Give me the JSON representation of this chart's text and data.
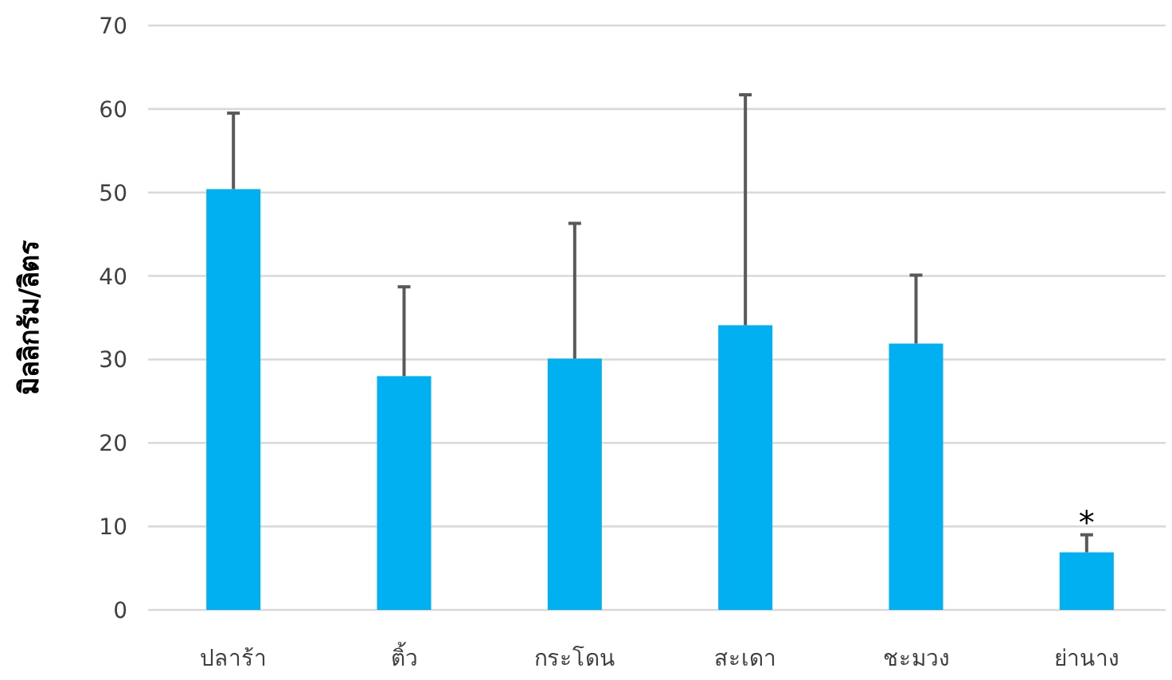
{
  "chart_data": {
    "type": "bar",
    "ylabel": "มิลลิกรัม/ลิตร",
    "categories": [
      "ปลาร้า",
      "ติ้ว",
      "กระโดน",
      "สะเดา",
      "ชะมวง",
      "ย่านาง"
    ],
    "values": [
      50.4,
      28.0,
      30.1,
      34.1,
      31.9,
      6.9
    ],
    "errors": [
      [
        50.4,
        59.5
      ],
      [
        28.0,
        38.7
      ],
      [
        30.1,
        46.3
      ],
      [
        34.1,
        61.7
      ],
      [
        31.9,
        40.1
      ],
      [
        6.9,
        9.0
      ]
    ],
    "color": "#00b0f0",
    "ylim": [
      0,
      70
    ],
    "yticks": [
      0,
      10,
      20,
      30,
      40,
      50,
      60,
      70
    ],
    "grid": "y",
    "annotations": [
      {
        "text": "*",
        "x": "ย่านาง",
        "y": 9.0
      }
    ]
  }
}
